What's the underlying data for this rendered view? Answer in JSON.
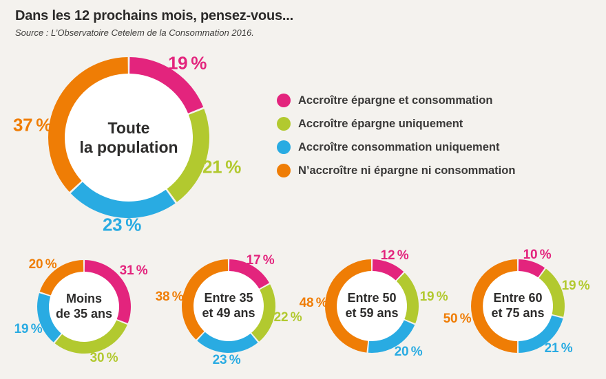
{
  "header": {
    "title": "Dans les 12 prochains mois, pensez-vous...",
    "source": "Source : L’Observatoire Cetelem de la Consommation 2016."
  },
  "legend": {
    "items": [
      {
        "label": "Accroître épargne et consommation",
        "color": "#e3247d"
      },
      {
        "label": "Accroître épargne uniquement",
        "color": "#b2c92f"
      },
      {
        "label": "Accroître consommation uniquement",
        "color": "#29abe2"
      },
      {
        "label": "N’accroître ni épargne ni consommation",
        "color": "#ef7d05"
      }
    ]
  },
  "chart_data": {
    "type": "pie",
    "variant": "donut-small-multiples",
    "unit": "%",
    "title": "Dans les 12 prochains mois, pensez-vous...",
    "source": "Source : L’Observatoire Cetelem de la Consommation 2016.",
    "legend_position": "right-of-main-donut",
    "categories": [
      "Accroître épargne et consommation",
      "Accroître épargne uniquement",
      "Accroître consommation uniquement",
      "N’accroître ni épargne ni consommation"
    ],
    "colors": [
      "#e3247d",
      "#b2c92f",
      "#29abe2",
      "#ef7d05"
    ],
    "charts": [
      {
        "name": "Toute la population",
        "label_lines": [
          "Toute",
          "la population"
        ],
        "values": [
          19,
          21,
          23,
          37
        ],
        "display": [
          "19 %",
          "21 %",
          "23 %",
          "37 %"
        ]
      },
      {
        "name": "Moins de 35 ans",
        "label_lines": [
          "Moins",
          "de 35 ans"
        ],
        "values": [
          31,
          30,
          19,
          20
        ],
        "display": [
          "31 %",
          "30 %",
          "19 %",
          "20 %"
        ]
      },
      {
        "name": "Entre 35 et 49 ans",
        "label_lines": [
          "Entre 35",
          "et 49 ans"
        ],
        "values": [
          17,
          22,
          23,
          38
        ],
        "display": [
          "17 %",
          "22 %",
          "23 %",
          "38 %"
        ]
      },
      {
        "name": "Entre 50 et 59 ans",
        "label_lines": [
          "Entre 50",
          "et 59 ans"
        ],
        "values": [
          12,
          19,
          20,
          48
        ],
        "display": [
          "12 %",
          "19 %",
          "20 %",
          "48 %"
        ]
      },
      {
        "name": "Entre 60 et 75 ans",
        "label_lines": [
          "Entre 60",
          "et 75 ans"
        ],
        "values": [
          10,
          19,
          21,
          50
        ],
        "display": [
          "10 %",
          "19 %",
          "21 %",
          "50 %"
        ]
      }
    ]
  },
  "colors": {
    "background": "#f4f2ee",
    "donut_hole": "#ffffff",
    "text": "#2d2c2b"
  }
}
